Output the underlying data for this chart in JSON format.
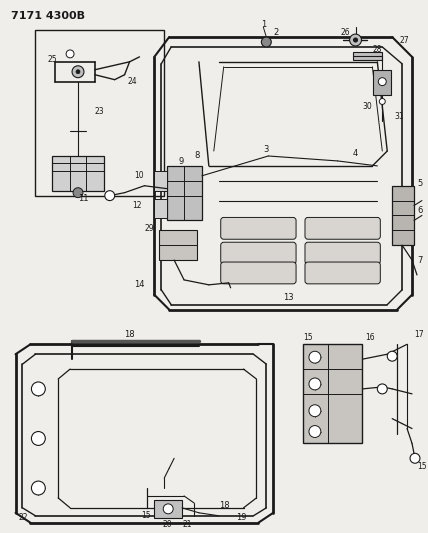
{
  "title_line1": "7171 4300B",
  "bg_color": "#f0eeea",
  "line_color": "#1a1a1a",
  "fig_width": 4.28,
  "fig_height": 5.33,
  "dpi": 100
}
